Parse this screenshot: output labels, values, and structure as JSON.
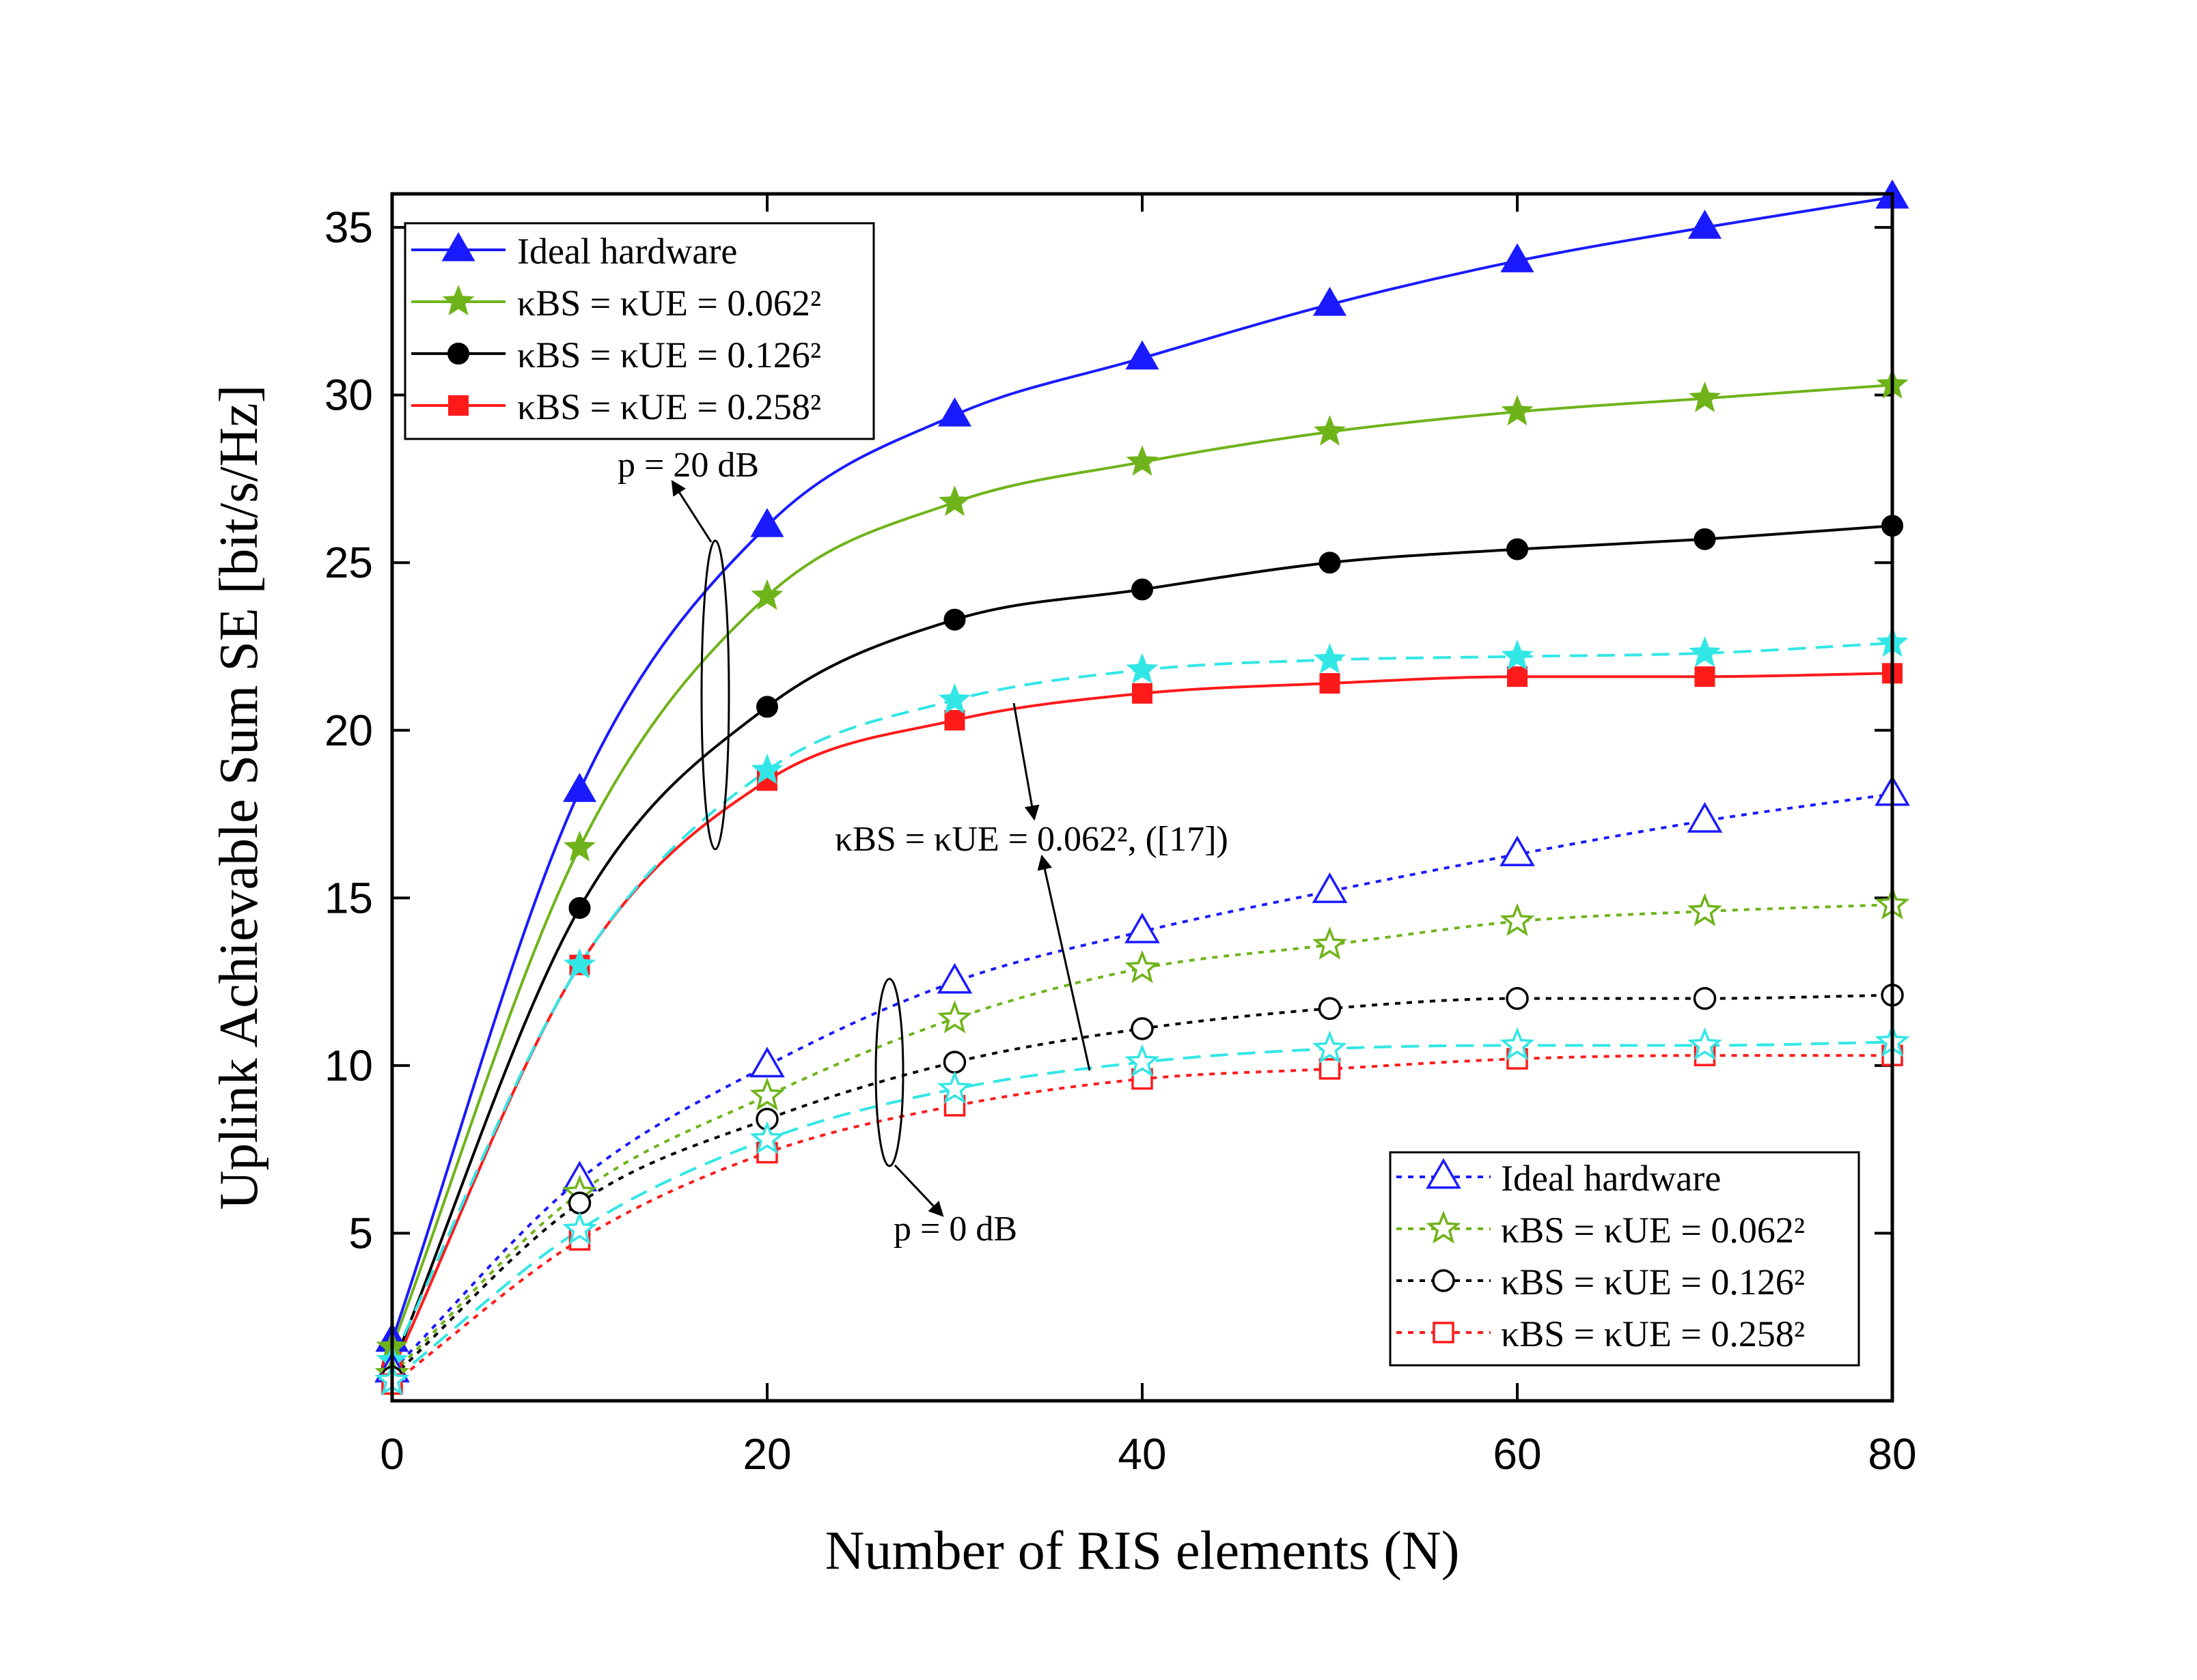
{
  "chart_data": {
    "type": "line",
    "title": "",
    "xlabel": "Number of RIS elements (N)",
    "ylabel": "Uplink Achievable Sum SE [bit/s/Hz]",
    "xlim": [
      0,
      80
    ],
    "ylim": [
      0,
      36
    ],
    "x_ticks": [
      0,
      20,
      40,
      60,
      80
    ],
    "y_ticks": [
      5,
      10,
      15,
      20,
      25,
      30,
      35
    ],
    "x_tick_labels": [
      "0",
      "20",
      "40",
      "60",
      "80"
    ],
    "y_tick_labels": [
      "5",
      "10",
      "15",
      "20",
      "25",
      "30",
      "35"
    ],
    "x": [
      0,
      10,
      20,
      30,
      40,
      50,
      60,
      70,
      80
    ],
    "series": [
      {
        "name": "Ideal hardware",
        "group": "p = 20 dB",
        "color": "#1a1aff",
        "marker": "triangle",
        "filled": true,
        "dash": "solid",
        "values": [
          1.8,
          18.2,
          26.1,
          29.4,
          31.1,
          32.7,
          34.0,
          35.0,
          35.9
        ]
      },
      {
        "name": "κBS = κUE = 0.062²",
        "group": "p = 20 dB",
        "color": "#6fb31a",
        "marker": "star",
        "filled": true,
        "dash": "solid",
        "values": [
          1.6,
          16.5,
          24.0,
          26.8,
          28.0,
          28.9,
          29.5,
          29.9,
          30.3
        ]
      },
      {
        "name": "κBS = κUE = 0.126²",
        "group": "p = 20 dB",
        "color": "#000000",
        "marker": "circle",
        "filled": true,
        "dash": "solid",
        "values": [
          1.0,
          14.7,
          20.7,
          23.3,
          24.2,
          25.0,
          25.4,
          25.7,
          26.1
        ]
      },
      {
        "name": "κBS = κUE = 0.258²",
        "group": "p = 20 dB",
        "color": "#ff1a1a",
        "marker": "square",
        "filled": true,
        "dash": "solid",
        "values": [
          0.9,
          13.0,
          18.5,
          20.3,
          21.1,
          21.4,
          21.6,
          21.6,
          21.7
        ]
      },
      {
        "name": "κBS = κUE = 0.062², ([17])",
        "group": "p = 20 dB",
        "color": "#33e6e6",
        "marker": "star",
        "filled": true,
        "dash": "dashed",
        "values": [
          1.2,
          13.0,
          18.8,
          20.9,
          21.8,
          22.1,
          22.2,
          22.3,
          22.6
        ]
      },
      {
        "name": "Ideal hardware",
        "group": "p = 0 dB",
        "color": "#1a1aff",
        "marker": "triangle",
        "filled": false,
        "dash": "dotted",
        "values": [
          0.9,
          6.6,
          10.0,
          12.5,
          14.0,
          15.2,
          16.3,
          17.3,
          18.1
        ]
      },
      {
        "name": "κBS = κUE = 0.062²",
        "group": "p = 0 dB",
        "color": "#6fb31a",
        "marker": "star",
        "filled": false,
        "dash": "dotted",
        "values": [
          0.8,
          6.2,
          9.1,
          11.4,
          12.9,
          13.6,
          14.3,
          14.6,
          14.8
        ]
      },
      {
        "name": "κBS = κUE = 0.126²",
        "group": "p = 0 dB",
        "color": "#000000",
        "marker": "circle",
        "filled": false,
        "dash": "dotted",
        "values": [
          0.7,
          5.9,
          8.4,
          10.1,
          11.1,
          11.7,
          12.0,
          12.0,
          12.1
        ]
      },
      {
        "name": "κBS = κUE = 0.258²",
        "group": "p = 0 dB",
        "color": "#ff1a1a",
        "marker": "square",
        "filled": false,
        "dash": "dotted",
        "values": [
          0.5,
          4.8,
          7.4,
          8.8,
          9.6,
          9.9,
          10.2,
          10.3,
          10.3
        ]
      },
      {
        "name": "κBS = κUE = 0.062², ([17])",
        "group": "p = 0 dB",
        "color": "#33e6e6",
        "marker": "star",
        "filled": false,
        "dash": "dashed",
        "values": [
          0.6,
          5.1,
          7.8,
          9.3,
          10.1,
          10.5,
          10.6,
          10.6,
          10.7
        ]
      }
    ],
    "legends": [
      {
        "placement": "top-left",
        "entries": [
          {
            "label": "Ideal hardware",
            "series": 0
          },
          {
            "label": "κBS = κUE = 0.062²",
            "series": 1
          },
          {
            "label": "κBS = κUE = 0.126²",
            "series": 2
          },
          {
            "label": "κBS = κUE = 0.258²",
            "series": 3
          }
        ]
      },
      {
        "placement": "bottom-right",
        "entries": [
          {
            "label": "Ideal hardware",
            "series": 5
          },
          {
            "label": "κBS = κUE = 0.062²",
            "series": 6
          },
          {
            "label": "κBS = κUE = 0.126²",
            "series": 7
          },
          {
            "label": "κBS = κUE = 0.258²",
            "series": 8
          }
        ]
      }
    ],
    "annotations": [
      {
        "text": "p = 20 dB",
        "group": "p = 20 dB"
      },
      {
        "text": "p = 0 dB",
        "group": "p = 0 dB"
      },
      {
        "text": "κBS = κUE = 0.062², ([17])"
      }
    ]
  }
}
